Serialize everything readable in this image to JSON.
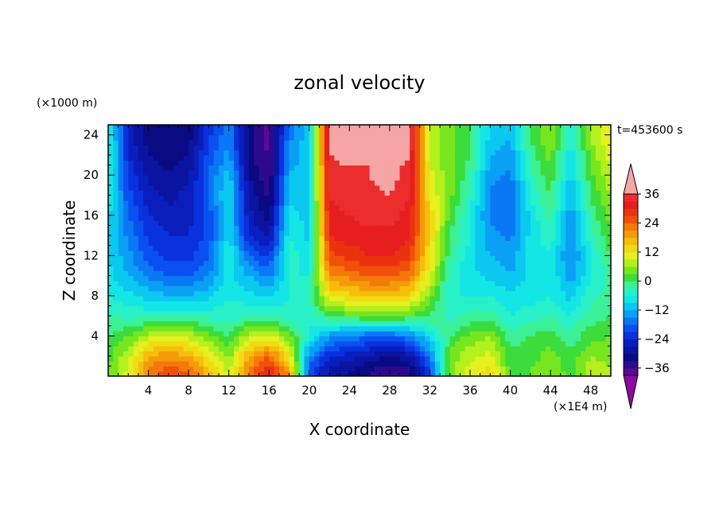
{
  "chart_data": {
    "type": "heatmap",
    "title": "zonal velocity",
    "xlabel": "X coordinate",
    "ylabel": "Z coordinate",
    "x_unit_label": "(×1E4 m)",
    "y_unit_label": "(×1000 m)",
    "time_label": "t=453600 s",
    "xlim": [
      0,
      50
    ],
    "ylim": [
      0,
      25
    ],
    "x_ticks": [
      4,
      8,
      12,
      16,
      20,
      24,
      28,
      32,
      36,
      40,
      44,
      48
    ],
    "y_ticks": [
      4,
      8,
      12,
      16,
      20,
      24
    ],
    "colorbar": {
      "ticks": [
        36,
        24,
        12,
        0,
        -12,
        -24,
        -36
      ],
      "levels": [
        -42,
        -39,
        -36,
        -33,
        -30,
        -27,
        -24,
        -21,
        -18,
        -15,
        -12,
        -9,
        -6,
        -3,
        0,
        3,
        6,
        9,
        12,
        15,
        18,
        21,
        24,
        27,
        30,
        33,
        36,
        39,
        42
      ],
      "colors": [
        "#8c0aa0",
        "#5a0a96",
        "#2d0a8c",
        "#0a0a82",
        "#0a14a0",
        "#0a1ebe",
        "#0a32dc",
        "#0a50f0",
        "#0a78f5",
        "#0aa0f5",
        "#0ac8f0",
        "#14e6e6",
        "#28f0c8",
        "#3cf096",
        "#3cdc3c",
        "#78e61e",
        "#b4f01e",
        "#e6f01e",
        "#f0dc14",
        "#f5be0a",
        "#f59b0a",
        "#f5780a",
        "#f0500a",
        "#eb320f",
        "#e61e1e",
        "#eb2d2d",
        "#f5a5a5"
      ]
    },
    "z_data_note_grid": "values in m/s, x in 1E4 m, z in 1000 m",
    "x": [
      0,
      2,
      4,
      6,
      8,
      10,
      12,
      14,
      16,
      18,
      20,
      22,
      24,
      26,
      28,
      30,
      32,
      34,
      36,
      38,
      40,
      42,
      44,
      46,
      48,
      50
    ],
    "z": [
      0.5,
      2,
      4,
      6,
      8,
      10,
      12,
      14,
      16,
      18,
      20,
      22,
      24
    ],
    "values": [
      [
        3,
        10,
        22,
        26,
        24,
        16,
        8,
        22,
        30,
        20,
        -20,
        -28,
        -30,
        -33,
        -36,
        -34,
        -20,
        5,
        10,
        14,
        2,
        3,
        5,
        2,
        8,
        6
      ],
      [
        2,
        8,
        18,
        20,
        18,
        12,
        5,
        18,
        24,
        12,
        -15,
        -24,
        -26,
        -28,
        -30,
        -28,
        -16,
        4,
        8,
        10,
        1,
        2,
        4,
        1,
        6,
        5
      ],
      [
        0,
        3,
        8,
        10,
        8,
        4,
        0,
        8,
        10,
        4,
        -6,
        -14,
        -16,
        -18,
        -18,
        -16,
        -8,
        0,
        4,
        6,
        -2,
        0,
        2,
        -2,
        2,
        3
      ],
      [
        -3,
        -4,
        -4,
        -3,
        -3,
        -4,
        -5,
        -3,
        -2,
        -5,
        -5,
        0,
        2,
        3,
        4,
        2,
        0,
        -4,
        -2,
        -2,
        -6,
        -4,
        -3,
        -6,
        -2,
        0
      ],
      [
        -6,
        -8,
        -10,
        -12,
        -12,
        -10,
        -6,
        -8,
        -10,
        -6,
        -4,
        12,
        14,
        16,
        16,
        14,
        4,
        -6,
        -6,
        -6,
        -8,
        -8,
        -6,
        -10,
        -4,
        -2
      ],
      [
        -8,
        -12,
        -16,
        -18,
        -18,
        -15,
        -8,
        -12,
        -16,
        -6,
        -6,
        20,
        22,
        24,
        24,
        22,
        10,
        -4,
        -8,
        -10,
        -12,
        -8,
        -6,
        -14,
        -6,
        -2
      ],
      [
        -9,
        -14,
        -20,
        -22,
        -22,
        -18,
        -6,
        -18,
        -22,
        -4,
        -8,
        26,
        28,
        30,
        30,
        28,
        12,
        -2,
        -8,
        -12,
        -14,
        -8,
        -6,
        -16,
        -6,
        0
      ],
      [
        -9,
        -16,
        -22,
        -24,
        -24,
        -20,
        -8,
        -24,
        -28,
        -6,
        -10,
        30,
        32,
        32,
        32,
        30,
        14,
        0,
        -6,
        -14,
        -16,
        -8,
        -4,
        -16,
        -4,
        2
      ],
      [
        -8,
        -18,
        -24,
        -26,
        -25,
        -20,
        -10,
        -26,
        -32,
        -8,
        -10,
        32,
        33,
        34,
        34,
        32,
        14,
        2,
        -6,
        -16,
        -18,
        -8,
        -2,
        -14,
        -2,
        4
      ],
      [
        -6,
        -20,
        -26,
        -28,
        -26,
        -18,
        -8,
        -28,
        -34,
        -10,
        -10,
        33,
        34,
        34,
        36,
        33,
        12,
        4,
        -4,
        -16,
        -18,
        -6,
        0,
        -12,
        0,
        6
      ],
      [
        -5,
        -22,
        -28,
        -30,
        -28,
        -18,
        -10,
        -30,
        -36,
        -12,
        -10,
        34,
        34,
        36,
        38,
        34,
        10,
        4,
        -2,
        -14,
        -16,
        -4,
        2,
        -10,
        2,
        8
      ],
      [
        -4,
        -24,
        -30,
        -32,
        -30,
        -20,
        -14,
        -32,
        -36,
        -14,
        -10,
        36,
        38,
        36,
        38,
        36,
        8,
        4,
        0,
        -12,
        -14,
        -2,
        4,
        -8,
        4,
        10
      ],
      [
        -4,
        -26,
        -32,
        -32,
        -32,
        -22,
        -16,
        -32,
        -38,
        -16,
        -10,
        38,
        40,
        36,
        36,
        38,
        8,
        4,
        0,
        -10,
        -12,
        0,
        6,
        -6,
        6,
        12
      ]
    ]
  }
}
